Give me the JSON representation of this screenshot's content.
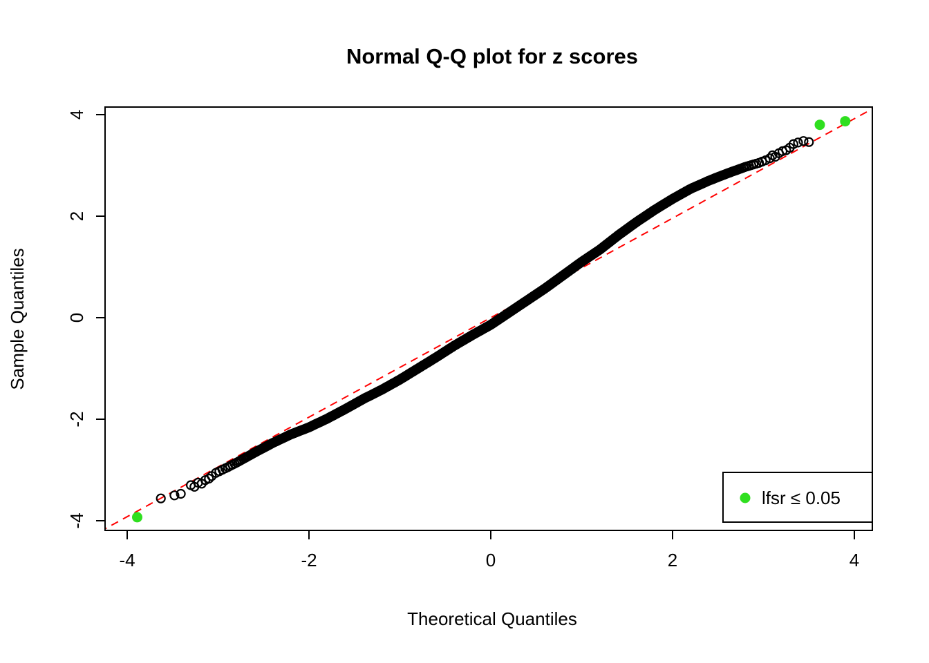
{
  "chart_data": {
    "type": "scatter",
    "subtype": "qq-plot",
    "title": "Normal Q-Q plot for z scores",
    "xlabel": "Theoretical Quantiles",
    "ylabel": "Sample Quantiles",
    "xlim": [
      -4.3,
      4.3
    ],
    "ylim": [
      -4.3,
      4.3
    ],
    "x_ticks": [
      -4,
      -2,
      0,
      2,
      4
    ],
    "y_ticks": [
      -4,
      -2,
      0,
      2,
      4
    ],
    "grid": false,
    "n_points": 6000,
    "band_range": 3.05,
    "point_style": {
      "shape": "open-circle",
      "color": "#000000",
      "radius_px": 6,
      "stroke_px": 2.2
    },
    "qq_curve": [
      [
        -3.05,
        -3.08
      ],
      [
        -2.9,
        -2.95
      ],
      [
        -2.8,
        -2.86
      ],
      [
        -2.6,
        -2.66
      ],
      [
        -2.4,
        -2.47
      ],
      [
        -2.2,
        -2.3
      ],
      [
        -2.0,
        -2.16
      ],
      [
        -1.8,
        -1.99
      ],
      [
        -1.6,
        -1.8
      ],
      [
        -1.4,
        -1.6
      ],
      [
        -1.2,
        -1.42
      ],
      [
        -1.0,
        -1.22
      ],
      [
        -0.8,
        -1.0
      ],
      [
        -0.6,
        -0.78
      ],
      [
        -0.4,
        -0.55
      ],
      [
        -0.2,
        -0.34
      ],
      [
        0.0,
        -0.14
      ],
      [
        0.2,
        0.1
      ],
      [
        0.4,
        0.34
      ],
      [
        0.6,
        0.58
      ],
      [
        0.8,
        0.84
      ],
      [
        1.0,
        1.1
      ],
      [
        1.2,
        1.34
      ],
      [
        1.4,
        1.62
      ],
      [
        1.6,
        1.88
      ],
      [
        1.8,
        2.12
      ],
      [
        2.0,
        2.34
      ],
      [
        2.2,
        2.54
      ],
      [
        2.4,
        2.7
      ],
      [
        2.6,
        2.84
      ],
      [
        2.8,
        2.97
      ],
      [
        2.95,
        3.05
      ],
      [
        3.05,
        3.12
      ]
    ],
    "tail_points": [
      [
        -3.63,
        -3.56
      ],
      [
        -3.48,
        -3.5
      ],
      [
        -3.41,
        -3.47
      ],
      [
        -3.3,
        -3.3
      ],
      [
        -3.26,
        -3.33
      ],
      [
        -3.22,
        -3.25
      ],
      [
        -3.18,
        -3.27
      ],
      [
        -3.14,
        -3.2
      ],
      [
        -3.1,
        -3.17
      ],
      [
        -3.07,
        -3.12
      ],
      [
        3.07,
        3.14
      ],
      [
        3.1,
        3.2
      ],
      [
        3.13,
        3.17
      ],
      [
        3.17,
        3.24
      ],
      [
        3.21,
        3.28
      ],
      [
        3.25,
        3.3
      ],
      [
        3.29,
        3.35
      ],
      [
        3.33,
        3.42
      ],
      [
        3.38,
        3.45
      ],
      [
        3.44,
        3.48
      ],
      [
        3.5,
        3.46
      ]
    ],
    "significant_points": [
      [
        -3.89,
        -3.93
      ],
      [
        3.62,
        3.8
      ],
      [
        3.9,
        3.87
      ]
    ],
    "significant_style": {
      "color": "#2FDF1F",
      "radius_px": 7.5
    },
    "reference_line": {
      "slope": 0.98,
      "intercept": 0.0,
      "color": "#FF0000",
      "style": "dashed"
    },
    "legend": {
      "label": "lfsr  ≤ 0.05",
      "position": "bottomright",
      "marker_color": "#2FDF1F"
    }
  }
}
